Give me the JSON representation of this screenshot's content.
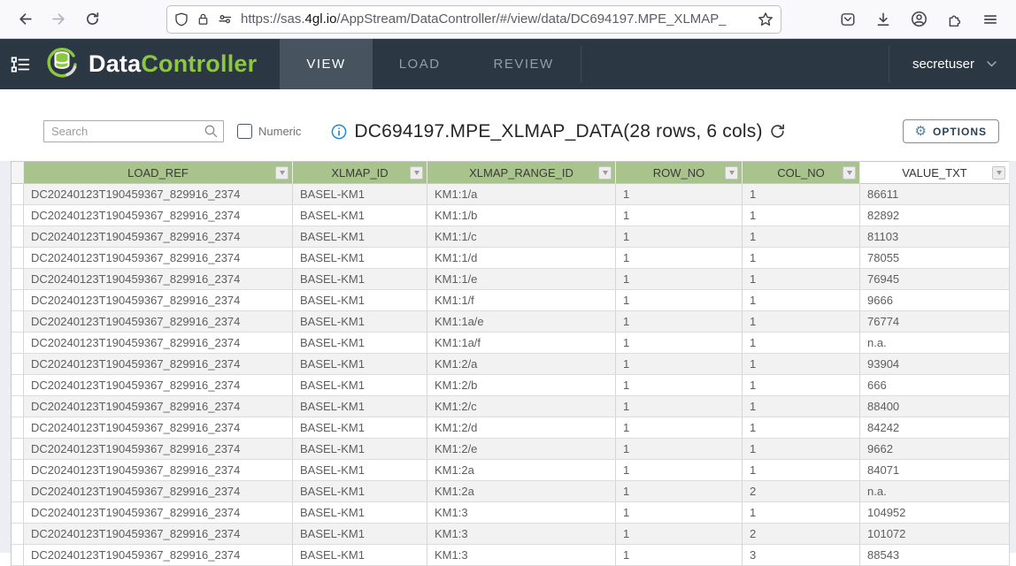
{
  "browser": {
    "url": {
      "scheme": "https://",
      "subdomain": "sas.",
      "domain": "4gl.io",
      "path": "/AppStream/DataController/#/view/data/DC694197.MPE_XLMAP_"
    }
  },
  "header": {
    "logo_part1": "Data",
    "logo_part2": "Controller",
    "tabs": [
      {
        "label": "VIEW",
        "active": true
      },
      {
        "label": "LOAD",
        "active": false
      },
      {
        "label": "REVIEW",
        "active": false
      }
    ],
    "user": "secretuser"
  },
  "toolbar": {
    "search_placeholder": "Search",
    "numeric_label": "Numeric",
    "title": "DC694197.MPE_XLMAP_DATA(28 rows, 6 cols)",
    "options_label": "OPTIONS",
    "gear_glyph": "⚙"
  },
  "table": {
    "columns": [
      "LOAD_REF",
      "XLMAP_ID",
      "XLMAP_RANGE_ID",
      "ROW_NO",
      "COL_NO",
      "VALUE_TXT"
    ],
    "rows": [
      [
        "DC20240123T190459367_829916_2374",
        "BASEL-KM1",
        "KM1:1/a",
        "1",
        "1",
        "86611"
      ],
      [
        "DC20240123T190459367_829916_2374",
        "BASEL-KM1",
        "KM1:1/b",
        "1",
        "1",
        "82892"
      ],
      [
        "DC20240123T190459367_829916_2374",
        "BASEL-KM1",
        "KM1:1/c",
        "1",
        "1",
        "81103"
      ],
      [
        "DC20240123T190459367_829916_2374",
        "BASEL-KM1",
        "KM1:1/d",
        "1",
        "1",
        "78055"
      ],
      [
        "DC20240123T190459367_829916_2374",
        "BASEL-KM1",
        "KM1:1/e",
        "1",
        "1",
        "76945"
      ],
      [
        "DC20240123T190459367_829916_2374",
        "BASEL-KM1",
        "KM1:1/f",
        "1",
        "1",
        "9666"
      ],
      [
        "DC20240123T190459367_829916_2374",
        "BASEL-KM1",
        "KM1:1a/e",
        "1",
        "1",
        "76774"
      ],
      [
        "DC20240123T190459367_829916_2374",
        "BASEL-KM1",
        "KM1:1a/f",
        "1",
        "1",
        "n.a."
      ],
      [
        "DC20240123T190459367_829916_2374",
        "BASEL-KM1",
        "KM1:2/a",
        "1",
        "1",
        "93904"
      ],
      [
        "DC20240123T190459367_829916_2374",
        "BASEL-KM1",
        "KM1:2/b",
        "1",
        "1",
        "666"
      ],
      [
        "DC20240123T190459367_829916_2374",
        "BASEL-KM1",
        "KM1:2/c",
        "1",
        "1",
        "88400"
      ],
      [
        "DC20240123T190459367_829916_2374",
        "BASEL-KM1",
        "KM1:2/d",
        "1",
        "1",
        "84242"
      ],
      [
        "DC20240123T190459367_829916_2374",
        "BASEL-KM1",
        "KM1:2/e",
        "1",
        "1",
        "9662"
      ],
      [
        "DC20240123T190459367_829916_2374",
        "BASEL-KM1",
        "KM1:2a",
        "1",
        "1",
        "84071"
      ],
      [
        "DC20240123T190459367_829916_2374",
        "BASEL-KM1",
        "KM1:2a",
        "1",
        "2",
        "n.a."
      ],
      [
        "DC20240123T190459367_829916_2374",
        "BASEL-KM1",
        "KM1:3",
        "1",
        "1",
        "104952"
      ],
      [
        "DC20240123T190459367_829916_2374",
        "BASEL-KM1",
        "KM1:3",
        "1",
        "2",
        "101072"
      ],
      [
        "DC20240123T190459367_829916_2374",
        "BASEL-KM1",
        "KM1:3",
        "1",
        "3",
        "88543"
      ]
    ]
  },
  "colors": {
    "app_header_bg": "#2b3844",
    "active_tab_bg": "#47545f",
    "brand_green": "#8dc63f",
    "table_header_green": "#a9c38c",
    "row_stripe": "#f2f2f2",
    "info_blue": "#1f87d2",
    "gear_teal": "#4e7f9e"
  }
}
